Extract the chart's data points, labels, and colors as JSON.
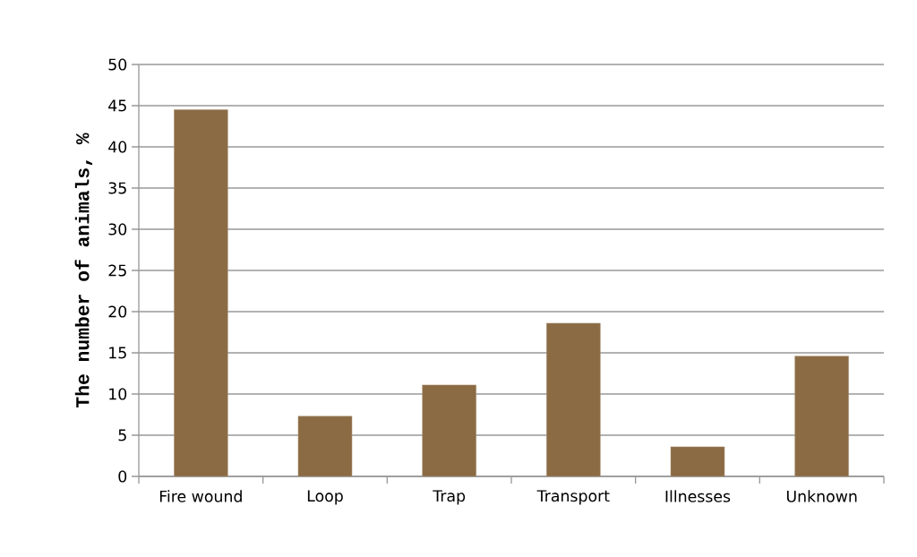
{
  "chart_data": {
    "type": "bar",
    "ylabel": "The number of animals, %",
    "categories": [
      "Fire wound",
      "Loop",
      "Trap",
      "Transport",
      "Illnesses",
      "Unknown"
    ],
    "values": [
      44.5,
      7.3,
      11.1,
      18.6,
      3.6,
      14.6
    ],
    "color": "#8b6b44",
    "ylim": [
      0,
      50
    ],
    "yticks": [
      0,
      5,
      10,
      15,
      20,
      25,
      30,
      35,
      40,
      45,
      50
    ],
    "grid": "y"
  }
}
